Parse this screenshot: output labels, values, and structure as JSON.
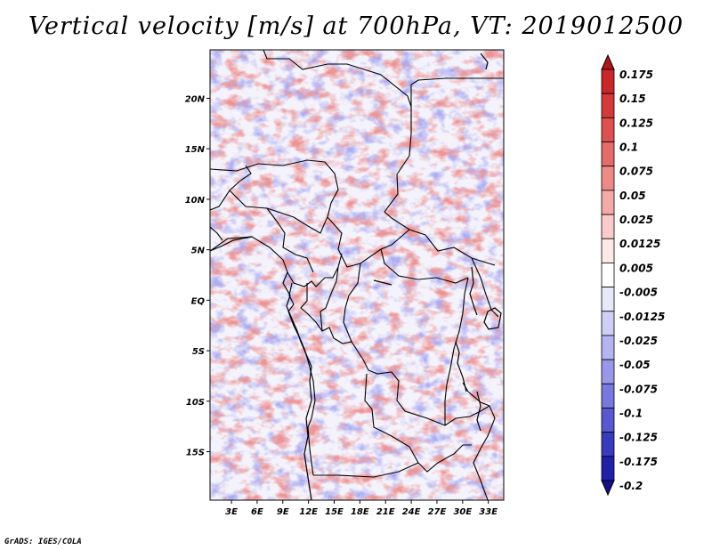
{
  "title": "Vertical velocity [m/s] at 700hPa, VT: 2019012500",
  "credit": "GrADS: IGES/COLA",
  "map": {
    "lat_labels": [
      "20N",
      "15N",
      "10N",
      "5N",
      "EQ",
      "5S",
      "10S",
      "15S"
    ],
    "lat_values": [
      20,
      15,
      10,
      5,
      0,
      -5,
      -10,
      -15
    ],
    "lon_labels": [
      "3E",
      "6E",
      "9E",
      "12E",
      "15E",
      "18E",
      "21E",
      "24E",
      "27E",
      "30E",
      "33E"
    ],
    "lon_values": [
      3,
      6,
      9,
      12,
      15,
      18,
      21,
      24,
      27,
      30,
      33
    ],
    "lon_range": [
      0.5,
      34.8
    ],
    "lat_range": [
      -19.8,
      24.8
    ],
    "field": "vertical velocity",
    "units": "m/s",
    "level": "700hPa",
    "valid_time": "2019012500"
  },
  "colorbar": {
    "labels": [
      "0.175",
      "0.15",
      "0.125",
      "0.1",
      "0.075",
      "0.05",
      "0.025",
      "0.0125",
      "0.005",
      "-0.005",
      "-0.0125",
      "-0.025",
      "-0.05",
      "-0.075",
      "-0.1",
      "-0.125",
      "-0.175",
      "-0.2"
    ],
    "colors": [
      "#b0161c",
      "#c8282a",
      "#d53a3a",
      "#de5050",
      "#e56c6a",
      "#ec8a88",
      "#f3aaa8",
      "#f9cccb",
      "#fde9e8",
      "#ffffff",
      "#e8e8fb",
      "#cfcff6",
      "#b4b4f0",
      "#9898e8",
      "#7878de",
      "#5858d0",
      "#3a3abc",
      "#2020a8",
      "#140e8c"
    ]
  }
}
